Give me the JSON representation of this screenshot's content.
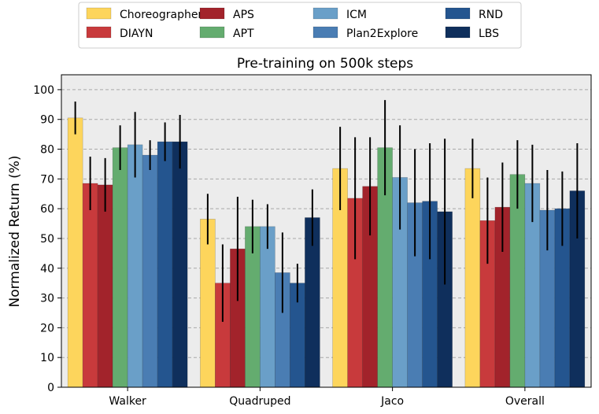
{
  "chart_data": {
    "type": "bar",
    "title": "Pre-training on 500k steps",
    "xlabel": "",
    "ylabel": "Normalized Return (%)",
    "ylim": [
      0,
      105
    ],
    "yticks": [
      0,
      10,
      20,
      30,
      40,
      50,
      60,
      70,
      80,
      90,
      100
    ],
    "grid": true,
    "legend_position": "top-center",
    "categories": [
      "Walker",
      "Quadruped",
      "Jaco",
      "Overall"
    ],
    "series": [
      {
        "name": "Choreographer",
        "color": "#FDD55C",
        "values": [
          90.5,
          56.5,
          73.5,
          73.5
        ],
        "errors": [
          5.5,
          8.5,
          14.0,
          10.0
        ]
      },
      {
        "name": "DIAYN",
        "color": "#C83A3C",
        "values": [
          68.5,
          35.0,
          63.5,
          56.0
        ],
        "errors": [
          9.0,
          13.0,
          20.5,
          14.5
        ]
      },
      {
        "name": "APS",
        "color": "#A2232B",
        "values": [
          68.0,
          46.5,
          67.5,
          60.5
        ],
        "errors": [
          9.0,
          17.5,
          16.5,
          15.0
        ]
      },
      {
        "name": "APT",
        "color": "#64AC6F",
        "values": [
          80.5,
          54.0,
          80.5,
          71.5
        ],
        "errors": [
          7.5,
          9.0,
          16.0,
          11.5
        ]
      },
      {
        "name": "ICM",
        "color": "#6A9FC8",
        "values": [
          81.5,
          54.0,
          70.5,
          68.5
        ],
        "errors": [
          11.0,
          7.5,
          17.5,
          13.0
        ]
      },
      {
        "name": "Plan2Explore",
        "color": "#4A7DB3",
        "values": [
          78.0,
          38.5,
          62.0,
          59.5
        ],
        "errors": [
          5.0,
          13.5,
          18.0,
          13.5
        ]
      },
      {
        "name": "RND",
        "color": "#24558F",
        "values": [
          82.5,
          35.0,
          62.5,
          60.0
        ],
        "errors": [
          6.5,
          6.5,
          19.5,
          12.5
        ]
      },
      {
        "name": "LBS",
        "color": "#0F2F5C",
        "values": [
          82.5,
          57.0,
          59.0,
          66.0
        ],
        "errors": [
          9.0,
          9.5,
          24.5,
          16.0
        ]
      }
    ]
  }
}
